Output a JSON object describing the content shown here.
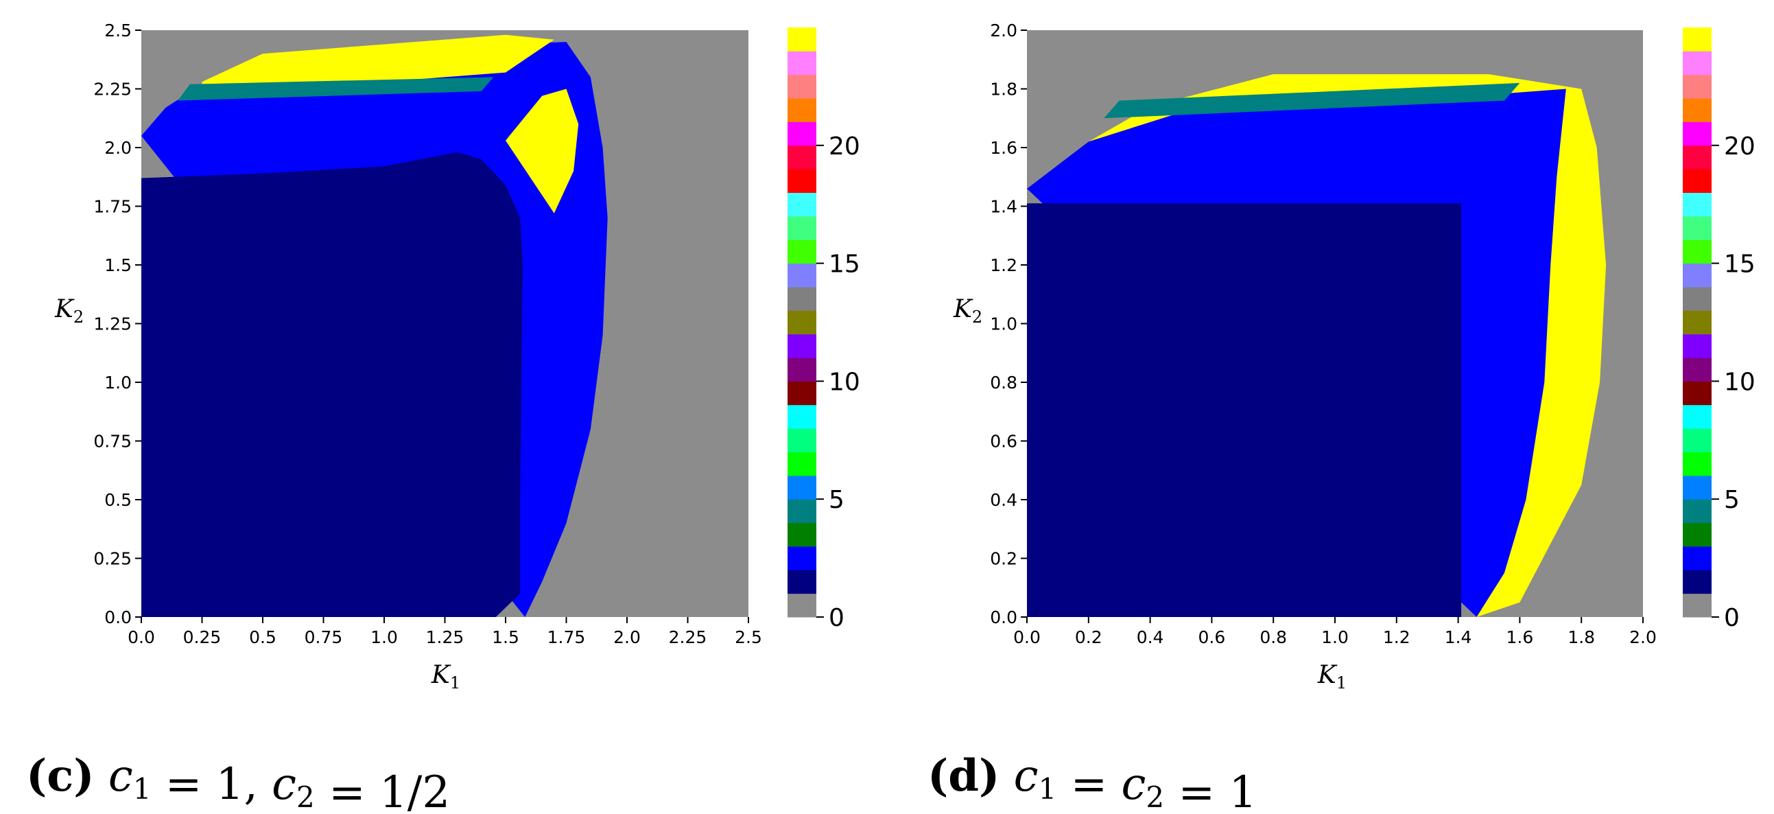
{
  "colorbar_palette": [
    "#8c8c8c",
    "#000080",
    "#0000ff",
    "#007f00",
    "#008080",
    "#007fff",
    "#00ff00",
    "#00ff7f",
    "#00ffff",
    "#800000",
    "#800080",
    "#7f00ff",
    "#808000",
    "#808080",
    "#8080ff",
    "#40ff00",
    "#40ff80",
    "#40ffff",
    "#ff0000",
    "#ff0040",
    "#ff00ff",
    "#ff8000",
    "#ff8080",
    "#ff80ff",
    "#ffff00"
  ],
  "chart_data": [
    {
      "type": "heatmap",
      "panel_label": "(c)",
      "caption": "c1 = 1, c2 = 1/2",
      "xlabel": "K1",
      "ylabel": "K2",
      "xlim": [
        0,
        2.5
      ],
      "ylim": [
        0,
        2.5
      ],
      "xticks": [
        "0.0",
        "0.25",
        "0.5",
        "0.75",
        "1.0",
        "1.25",
        "1.5",
        "1.75",
        "2.0",
        "2.25",
        "2.5"
      ],
      "yticks": [
        "0.0",
        "0.25",
        "0.5",
        "0.75",
        "1.0",
        "1.25",
        "1.5",
        "1.75",
        "2.0",
        "2.25",
        "2.5"
      ],
      "colorbar": {
        "vmin": 0,
        "vmax": 24,
        "ticks": [
          "0",
          "5",
          "10",
          "15",
          "20"
        ]
      },
      "regions": [
        {
          "value": 0,
          "color": "#8c8c8c",
          "description": "background"
        },
        {
          "value": 2,
          "color": "#0000ff",
          "outline": [
            [
              0,
              2.05
            ],
            [
              0.1,
              2.17
            ],
            [
              0.22,
              2.25
            ],
            [
              0.5,
              2.37
            ],
            [
              1.0,
              2.42
            ],
            [
              1.5,
              2.44
            ],
            [
              1.75,
              2.45
            ],
            [
              1.85,
              2.3
            ],
            [
              1.9,
              2.0
            ],
            [
              1.92,
              1.7
            ],
            [
              1.9,
              1.2
            ],
            [
              1.85,
              0.8
            ],
            [
              1.75,
              0.4
            ],
            [
              1.65,
              0.15
            ],
            [
              1.58,
              0
            ]
          ]
        },
        {
          "value": 1,
          "color": "#000080",
          "outline": [
            [
              0,
              0
            ],
            [
              0,
              1.87
            ],
            [
              0.5,
              1.89
            ],
            [
              1.0,
              1.92
            ],
            [
              1.3,
              1.98
            ],
            [
              1.4,
              1.95
            ],
            [
              1.5,
              1.84
            ],
            [
              1.56,
              1.7
            ],
            [
              1.57,
              1.5
            ],
            [
              1.565,
              1.0
            ],
            [
              1.56,
              0.5
            ],
            [
              1.56,
              0.1
            ],
            [
              1.46,
              0
            ]
          ]
        },
        {
          "value": 24,
          "color": "#ffff00",
          "outline": [
            [
              1.5,
              2.03
            ],
            [
              1.65,
              2.22
            ],
            [
              1.75,
              2.25
            ],
            [
              1.8,
              2.1
            ],
            [
              1.78,
              1.9
            ],
            [
              1.7,
              1.72
            ]
          ]
        },
        {
          "value": 24,
          "color": "#ffff00",
          "outline": [
            [
              0.25,
              2.28
            ],
            [
              0.5,
              2.4
            ],
            [
              1.0,
              2.44
            ],
            [
              1.5,
              2.48
            ],
            [
              1.7,
              2.46
            ],
            [
              1.5,
              2.32
            ],
            [
              1.0,
              2.28
            ],
            [
              0.25,
              2.25
            ]
          ]
        },
        {
          "value": 4,
          "color": "#008080",
          "outline": [
            [
              0.15,
              2.2
            ],
            [
              1.4,
              2.24
            ],
            [
              1.45,
              2.3
            ],
            [
              0.2,
              2.27
            ]
          ]
        }
      ]
    },
    {
      "type": "heatmap",
      "panel_label": "(d)",
      "caption": "c1 = c2 = 1",
      "xlabel": "K1",
      "ylabel": "K2",
      "xlim": [
        0,
        2.0
      ],
      "ylim": [
        0,
        2.0
      ],
      "xticks": [
        "0.0",
        "0.2",
        "0.4",
        "0.6",
        "0.8",
        "1.0",
        "1.2",
        "1.4",
        "1.6",
        "1.8",
        "2.0"
      ],
      "yticks": [
        "0.0",
        "0.2",
        "0.4",
        "0.6",
        "0.8",
        "1.0",
        "1.2",
        "1.4",
        "1.6",
        "1.8",
        "2.0"
      ],
      "colorbar": {
        "vmin": 0,
        "vmax": 24,
        "ticks": [
          "0",
          "5",
          "10",
          "15",
          "20"
        ]
      },
      "regions": [
        {
          "value": 0,
          "color": "#8c8c8c",
          "description": "background"
        },
        {
          "value": 24,
          "color": "#ffff00",
          "outline": [
            [
              0,
              1.46
            ],
            [
              0.2,
              1.62
            ],
            [
              0.4,
              1.74
            ],
            [
              0.8,
              1.85
            ],
            [
              1.2,
              1.85
            ],
            [
              1.5,
              1.85
            ],
            [
              1.8,
              1.8
            ],
            [
              1.85,
              1.6
            ],
            [
              1.88,
              1.2
            ],
            [
              1.86,
              0.8
            ],
            [
              1.8,
              0.45
            ],
            [
              1.7,
              0.25
            ],
            [
              1.6,
              0.05
            ],
            [
              1.46,
              0
            ]
          ]
        },
        {
          "value": 2,
          "color": "#0000ff",
          "outline": [
            [
              0,
              1.46
            ],
            [
              0.2,
              1.62
            ],
            [
              0.5,
              1.72
            ],
            [
              1.0,
              1.75
            ],
            [
              1.5,
              1.78
            ],
            [
              1.75,
              1.8
            ],
            [
              1.72,
              1.5
            ],
            [
              1.7,
              1.2
            ],
            [
              1.68,
              0.8
            ],
            [
              1.62,
              0.4
            ],
            [
              1.55,
              0.15
            ],
            [
              1.46,
              0
            ]
          ]
        },
        {
          "value": 1,
          "color": "#000080",
          "outline": [
            [
              0,
              0
            ],
            [
              0,
              1.41
            ],
            [
              1.41,
              1.41
            ],
            [
              1.41,
              0
            ]
          ]
        },
        {
          "value": 4,
          "color": "#008080",
          "outline": [
            [
              0.25,
              1.7
            ],
            [
              1.55,
              1.76
            ],
            [
              1.6,
              1.82
            ],
            [
              0.3,
              1.76
            ]
          ]
        }
      ]
    }
  ]
}
